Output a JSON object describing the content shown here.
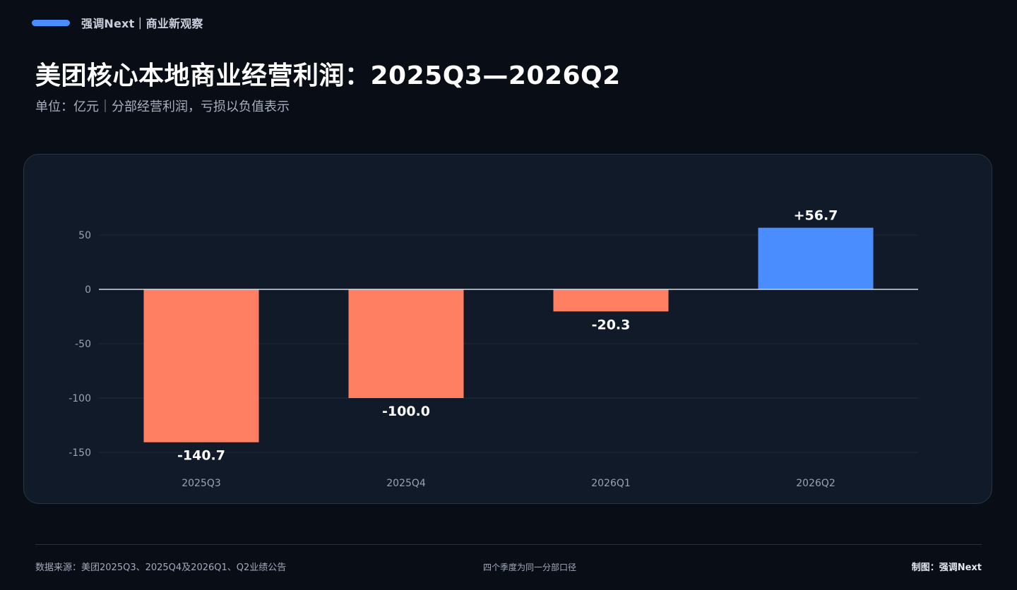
{
  "header": {
    "brand": "强调Next｜商业新观察",
    "title": "美团核心本地商业经营利润：2025Q3—2026Q2",
    "subtitle": "单位：亿元｜分部经营利润，亏损以负值表示"
  },
  "colors": {
    "accent": "#4a8dff",
    "negative": "#ff7f62",
    "positive": "#4a8dff",
    "background": "#080d16",
    "card": "#111a28"
  },
  "chart_data": {
    "type": "bar",
    "title": "美团核心本地商业经营利润：2025Q3—2026Q2",
    "subtitle": "单位：亿元｜分部经营利润，亏损以负值表示",
    "xlabel": "",
    "ylabel": "",
    "categories": [
      "2025Q3",
      "2025Q4",
      "2026Q1",
      "2026Q2"
    ],
    "values": [
      -140.7,
      -100.0,
      -20.3,
      56.7
    ],
    "value_labels": [
      "-140.7",
      "-100.0",
      "-20.3",
      "+56.7"
    ],
    "ylim": [
      -150,
      50
    ],
    "yticks": [
      50,
      0,
      -50,
      -100,
      -150
    ],
    "grid": true,
    "legend": "none"
  },
  "footer": {
    "source": "数据来源：美团2025Q3、2025Q4及2026Q1、Q2业绩公告",
    "note": "四个季度为同一分部口径",
    "credit": "制图：强调Next"
  }
}
